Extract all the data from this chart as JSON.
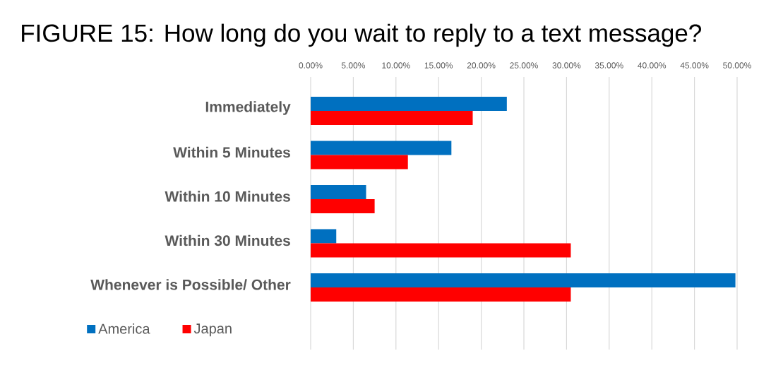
{
  "chart_data": {
    "type": "bar",
    "orientation": "horizontal",
    "title": "FIGURE 15: How long do you wait to reply to a text message?",
    "categories": [
      "Immediately",
      "Within 5 Minutes",
      "Within 10 Minutes",
      "Within 30 Minutes",
      "Whenever is Possible/ Other"
    ],
    "series": [
      {
        "name": "America",
        "color": "#0070c0",
        "values": [
          23,
          16.5,
          6.5,
          3,
          49.8
        ]
      },
      {
        "name": "Japan",
        "color": "#ff0000",
        "values": [
          19,
          11.4,
          7.5,
          30.5,
          30.5
        ]
      }
    ],
    "xlim": [
      0,
      50
    ],
    "xticks": [
      {
        "value": 0,
        "label": "0.00%"
      },
      {
        "value": 5,
        "label": "5.00%"
      },
      {
        "value": 10,
        "label": "10.00%"
      },
      {
        "value": 15,
        "label": "15.00%"
      },
      {
        "value": 20,
        "label": "20.00%"
      },
      {
        "value": 25,
        "label": "25.00%"
      },
      {
        "value": 30,
        "label": "30.00%"
      },
      {
        "value": 35,
        "label": "35.00%"
      },
      {
        "value": 40,
        "label": "40.00%"
      },
      {
        "value": 45,
        "label": "45.00%"
      },
      {
        "value": 50,
        "label": "50.00%"
      }
    ],
    "grid": "x",
    "legend": "bottom left"
  }
}
